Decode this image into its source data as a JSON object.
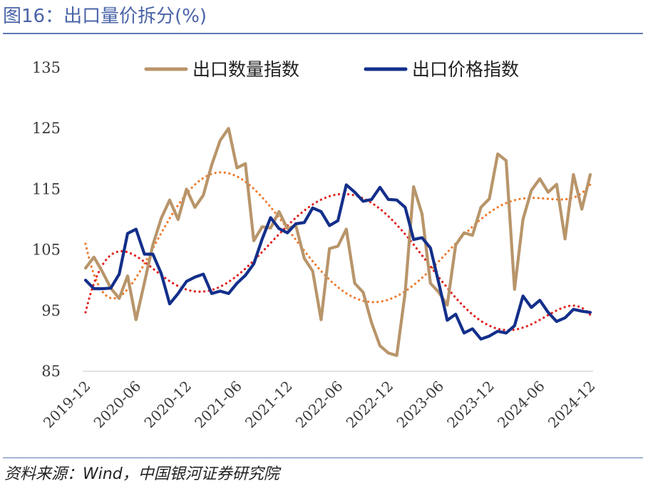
{
  "title": "图16：出口量价拆分(%)",
  "source": "资料来源：Wind，中国银河证券研究院",
  "chart_data": {
    "type": "line",
    "x": [
      "2019-12",
      "2020-01",
      "2020-02",
      "2020-03",
      "2020-04",
      "2020-05",
      "2020-06",
      "2020-07",
      "2020-08",
      "2020-09",
      "2020-10",
      "2020-11",
      "2020-12",
      "2021-01",
      "2021-02",
      "2021-03",
      "2021-04",
      "2021-05",
      "2021-06",
      "2021-07",
      "2021-08",
      "2021-09",
      "2021-10",
      "2021-11",
      "2021-12",
      "2022-01",
      "2022-02",
      "2022-03",
      "2022-04",
      "2022-05",
      "2022-06",
      "2022-07",
      "2022-08",
      "2022-09",
      "2022-10",
      "2022-11",
      "2022-12",
      "2023-01",
      "2023-02",
      "2023-03",
      "2023-04",
      "2023-05",
      "2023-06",
      "2023-07",
      "2023-08",
      "2023-09",
      "2023-10",
      "2023-11",
      "2023-12",
      "2024-01",
      "2024-02",
      "2024-03",
      "2024-04",
      "2024-05",
      "2024-06",
      "2024-07",
      "2024-08",
      "2024-09",
      "2024-10",
      "2024-11",
      "2024-12"
    ],
    "x_tick_labels": [
      "2019-12",
      "2020-06",
      "2020-12",
      "2021-06",
      "2021-12",
      "2022-06",
      "2022-12",
      "2023-06",
      "2023-12",
      "2024-06",
      "2024-12"
    ],
    "ylim": [
      85,
      135
    ],
    "y_ticks": [
      85,
      95,
      105,
      115,
      125,
      135
    ],
    "legend_position": "top",
    "grid": false,
    "series": [
      {
        "name": "出口数量指数",
        "color": "#b8956a",
        "values": [
          102,
          103.8,
          101.4,
          98.7,
          97,
          100.7,
          93.5,
          99.6,
          105.8,
          110.2,
          113.2,
          110,
          115,
          112,
          114,
          119,
          123,
          125,
          118.5,
          119.2,
          106.5,
          108.8,
          108.6,
          111.3,
          108.5,
          109,
          103.6,
          101.5,
          93.5,
          105.2,
          105.6,
          108.4,
          99.5,
          98,
          93,
          89.2,
          88,
          87.6,
          98,
          115.4,
          110.9,
          99.5,
          98,
          95.9,
          105.8,
          107.8,
          107.4,
          112,
          113.4,
          120.8,
          119.7,
          98.5,
          110,
          114.8,
          116.7,
          114.5,
          115.8,
          106.8,
          117.4,
          111.7,
          117.4
        ]
      },
      {
        "name": "出口价格指数",
        "color": "#132f8a",
        "values": [
          100,
          98.6,
          98.6,
          98.7,
          101,
          107.7,
          108.4,
          104.3,
          104.3,
          101.1,
          96.1,
          97.8,
          99.8,
          100.5,
          101,
          97.8,
          98.2,
          97.8,
          99.5,
          100.8,
          102.7,
          106.8,
          110.3,
          108.5,
          107.8,
          109.3,
          109.5,
          111.9,
          111.3,
          109,
          109.8,
          115.7,
          114.5,
          113,
          113.3,
          115.3,
          113.3,
          113.2,
          112,
          106.7,
          107,
          105.3,
          99.5,
          93.4,
          94.4,
          91.3,
          92,
          90.3,
          90.8,
          91.6,
          91.3,
          92.5,
          97.4,
          95.5,
          96.7,
          94.7,
          93.2,
          93.8,
          95.2,
          94.9,
          94.7
        ]
      }
    ]
  }
}
